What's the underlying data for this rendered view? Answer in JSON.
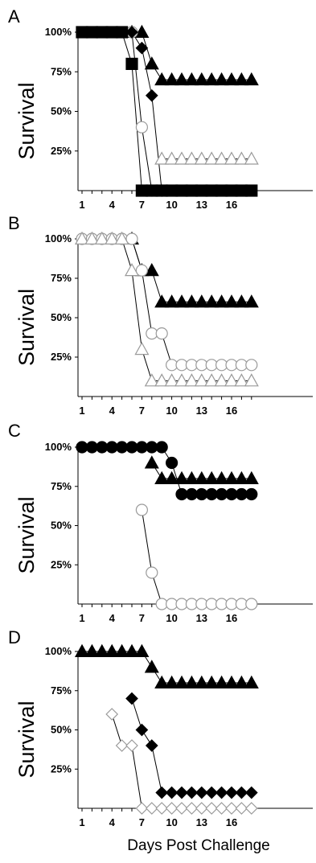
{
  "chart_data": [
    {
      "panel": "A",
      "type": "line",
      "ylabel": "Survival",
      "xlabel": "",
      "ytick_labels": [
        "100%",
        "75%",
        "50%",
        "25%"
      ],
      "xticks": [
        1,
        4,
        7,
        10,
        13,
        16
      ],
      "xlim": [
        0,
        18.5
      ],
      "ylim": [
        0,
        100
      ],
      "series": [
        {
          "marker": "triangle",
          "fill": "filled",
          "x": [
            6,
            7,
            8,
            9,
            10,
            11,
            12,
            13,
            14,
            15,
            16,
            17,
            18
          ],
          "y": [
            100,
            100,
            80,
            70,
            70,
            70,
            70,
            70,
            70,
            70,
            70,
            70,
            70
          ]
        },
        {
          "marker": "triangle",
          "fill": "open",
          "x": [
            9,
            10,
            11,
            12,
            13,
            14,
            15,
            16,
            17,
            18
          ],
          "y": [
            20,
            20,
            20,
            20,
            20,
            20,
            20,
            20,
            20,
            20
          ]
        },
        {
          "marker": "circle",
          "fill": "open",
          "x": [
            6,
            7,
            8
          ],
          "y": [
            100,
            40,
            0
          ]
        },
        {
          "marker": "diamond",
          "fill": "filled",
          "x": [
            6,
            7,
            8,
            9
          ],
          "y": [
            100,
            90,
            60,
            0
          ]
        },
        {
          "marker": "square",
          "fill": "filled",
          "x": [
            1,
            2,
            3,
            4,
            5,
            6,
            7,
            8,
            9,
            10,
            11,
            12,
            13,
            14,
            15,
            16,
            17,
            18
          ],
          "y": [
            100,
            100,
            100,
            100,
            100,
            80,
            0,
            0,
            0,
            0,
            0,
            0,
            0,
            0,
            0,
            0,
            0,
            0
          ]
        }
      ]
    },
    {
      "panel": "B",
      "type": "line",
      "ylabel": "Survival",
      "xlabel": "",
      "ytick_labels": [
        "100%",
        "75%",
        "50%",
        "25%"
      ],
      "xticks": [
        1,
        4,
        7,
        10,
        13,
        16
      ],
      "xlim": [
        0,
        18.5
      ],
      "ylim": [
        0,
        100
      ],
      "series": [
        {
          "marker": "triangle",
          "fill": "filled",
          "x": [
            6,
            7,
            8,
            9,
            10,
            11,
            12,
            13,
            14,
            15,
            16,
            17,
            18
          ],
          "y": [
            100,
            80,
            80,
            60,
            60,
            60,
            60,
            60,
            60,
            60,
            60,
            60,
            60
          ]
        },
        {
          "marker": "circle",
          "fill": "open",
          "x": [
            1,
            2,
            3,
            4,
            5,
            6,
            7,
            8,
            9,
            10,
            11,
            12,
            13,
            14,
            15,
            16,
            17,
            18
          ],
          "y": [
            100,
            100,
            100,
            100,
            100,
            100,
            80,
            40,
            40,
            20,
            20,
            20,
            20,
            20,
            20,
            20,
            20,
            20
          ]
        },
        {
          "marker": "triangle",
          "fill": "open",
          "x": [
            1,
            2,
            3,
            4,
            5,
            6,
            7,
            8,
            9,
            10,
            11,
            12,
            13,
            14,
            15,
            16,
            17,
            18
          ],
          "y": [
            100,
            100,
            100,
            100,
            100,
            80,
            30,
            10,
            10,
            10,
            10,
            10,
            10,
            10,
            10,
            10,
            10,
            10
          ]
        }
      ]
    },
    {
      "panel": "C",
      "type": "line",
      "ylabel": "Survival",
      "xlabel": "",
      "ytick_labels": [
        "100%",
        "75%",
        "50%",
        "25%"
      ],
      "xticks": [
        1,
        4,
        7,
        10,
        13,
        16
      ],
      "xlim": [
        0,
        18.5
      ],
      "ylim": [
        0,
        100
      ],
      "series": [
        {
          "marker": "triangle",
          "fill": "filled",
          "x": [
            8,
            9,
            10,
            11,
            12,
            13,
            14,
            15,
            16,
            17,
            18
          ],
          "y": [
            90,
            80,
            80,
            80,
            80,
            80,
            80,
            80,
            80,
            80,
            80
          ]
        },
        {
          "marker": "circle",
          "fill": "filled",
          "x": [
            1,
            2,
            3,
            4,
            5,
            6,
            7,
            8,
            9,
            10,
            11,
            12,
            13,
            14,
            15,
            16,
            17,
            18
          ],
          "y": [
            100,
            100,
            100,
            100,
            100,
            100,
            100,
            100,
            100,
            90,
            70,
            70,
            70,
            70,
            70,
            70,
            70,
            70
          ]
        },
        {
          "marker": "circle",
          "fill": "open",
          "x": [
            7,
            8,
            9,
            10,
            11,
            12,
            13,
            14,
            15,
            16,
            17,
            18
          ],
          "y": [
            60,
            20,
            0,
            0,
            0,
            0,
            0,
            0,
            0,
            0,
            0,
            0
          ]
        }
      ]
    },
    {
      "panel": "D",
      "type": "line",
      "ylabel": "Survival",
      "xlabel": "Days Post Challenge",
      "ytick_labels": [
        "100%",
        "75%",
        "50%",
        "25%"
      ],
      "xticks": [
        1,
        4,
        7,
        10,
        13,
        16
      ],
      "xlim": [
        0,
        18.5
      ],
      "ylim": [
        0,
        100
      ],
      "series": [
        {
          "marker": "triangle",
          "fill": "filled",
          "x": [
            1,
            2,
            3,
            4,
            5,
            6,
            7,
            8,
            9,
            10,
            11,
            12,
            13,
            14,
            15,
            16,
            17,
            18
          ],
          "y": [
            100,
            100,
            100,
            100,
            100,
            100,
            100,
            90,
            80,
            80,
            80,
            80,
            80,
            80,
            80,
            80,
            80,
            80
          ]
        },
        {
          "marker": "diamond",
          "fill": "filled",
          "x": [
            6,
            7,
            8,
            9,
            10,
            11,
            12,
            13,
            14,
            15,
            16,
            17,
            18
          ],
          "y": [
            70,
            50,
            40,
            10,
            10,
            10,
            10,
            10,
            10,
            10,
            10,
            10,
            10
          ]
        },
        {
          "marker": "diamond",
          "fill": "open",
          "x": [
            4,
            5,
            6,
            7,
            8,
            9,
            10,
            11,
            12,
            13,
            14,
            15,
            16,
            17,
            18
          ],
          "y": [
            60,
            40,
            40,
            0,
            0,
            0,
            0,
            0,
            0,
            0,
            0,
            0,
            0,
            0,
            0
          ]
        }
      ]
    }
  ]
}
